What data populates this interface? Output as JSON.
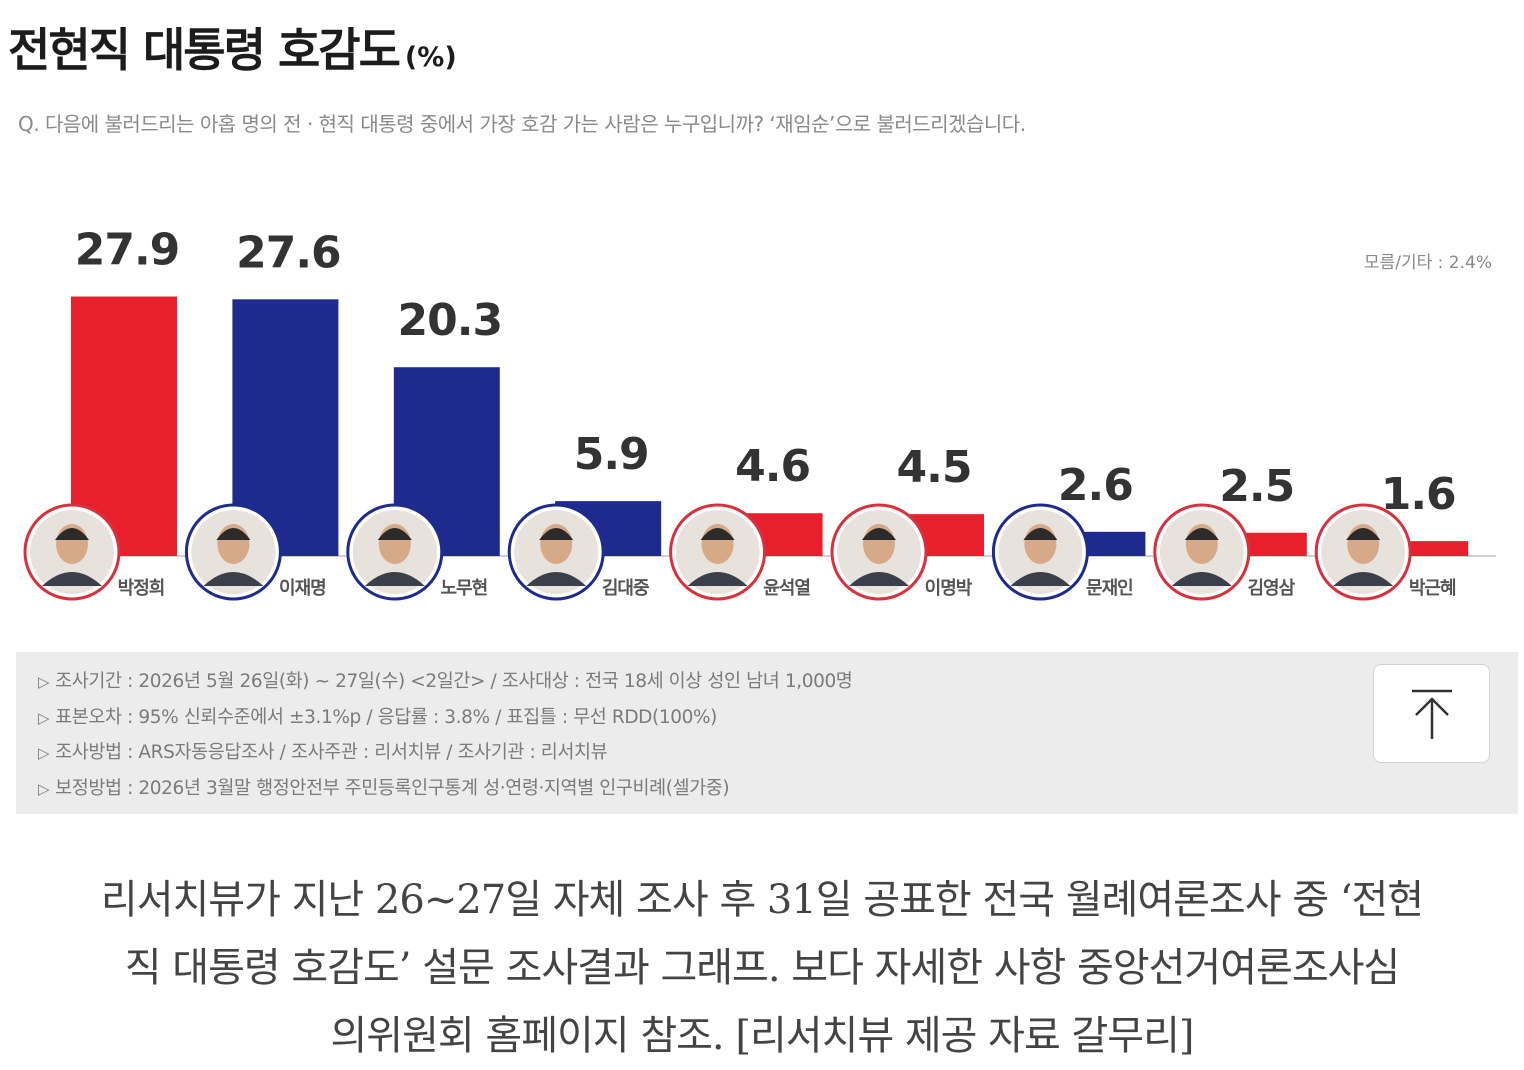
{
  "title": "전현직 대통령 호감도",
  "title_unit": "(%)",
  "question": "Q. 다음에 불러드리는 아홉 명의 전 · 현직 대통령 중에서 가장 호감 가는 사람은 누구입니까? ‘재임순’으로 불러드리겠습니다.",
  "other_note": "모름/기타 : 2.4%",
  "info": {
    "line1": "조사기간 : 2026년 5월 26일(화) ~ 27일(수) <2일간> / 조사대상 : 전국 18세 이상 성인 남녀 1,000명",
    "line2": "표본오차 : 95% 신뢰수준에서 ±3.1%p / 응답률 : 3.8% / 표집틀 : 무선 RDD(100%)",
    "line3": "조사방법 : ARS자동응답조사 / 조사주관 : 리서치뷰 / 조사기관 : 리서치뷰",
    "line4": "보정방법 : 2026년 3월말 행정안전부 주민등록인구통계 성·연령·지역별 인구비례(셀가중)",
    "bullet": "▷"
  },
  "top_button_icon": "arrow-up-to-top-icon",
  "caption": {
    "line1": "리서치뷰가 지난 26~27일 자체 조사 후 31일 공표한 전국 월례여론조사 중 ‘전현",
    "line2": "직 대통령 호감도’ 설문 조사결과 그래프. 보다 자세한 사항 중앙선거여론조사심",
    "line3": "의위원회 홈페이지 참조. [리서치뷰 제공 자료 갈무리]"
  },
  "colors": {
    "red": "#e8202e",
    "blue": "#1e2a8e",
    "ring_red": "#d9303c",
    "ring_blue": "#1e2a8e"
  },
  "chart_data": {
    "type": "bar",
    "title": "전현직 대통령 호감도",
    "unit": "%",
    "categories": [
      "박정희",
      "이재명",
      "노무현",
      "김대중",
      "윤석열",
      "이명박",
      "문재인",
      "김영삼",
      "박근혜"
    ],
    "values": [
      27.9,
      27.6,
      20.3,
      5.9,
      4.6,
      4.5,
      2.6,
      2.5,
      1.6
    ],
    "bar_colors": [
      "red",
      "blue",
      "blue",
      "blue",
      "red",
      "red",
      "blue",
      "red",
      "red"
    ],
    "ylim": [
      0,
      30
    ],
    "grid": false,
    "data_labels": true
  }
}
